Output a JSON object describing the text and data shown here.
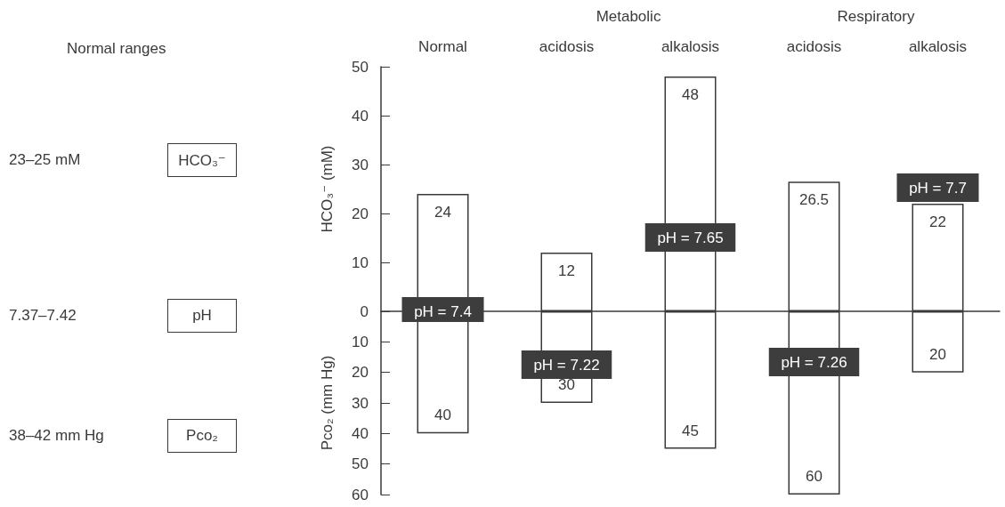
{
  "chart_data": [
    {
      "type": "other",
      "title": "Normal ranges",
      "annotations": [
        "23–25 mM",
        "HCO₃⁻",
        "7.37–7.42",
        "pH",
        "38–42 mm Hg",
        "Pco₂"
      ]
    },
    {
      "type": "bar",
      "categories": [
        "Normal",
        "acidosis",
        "alkalosis",
        "acidosis",
        "alkalosis"
      ],
      "values": [
        24,
        12,
        48,
        26.5,
        22
      ],
      "color": "#ffffff",
      "ylabel": "HCO₃⁻ (mM)",
      "ylim": [
        0,
        50
      ],
      "yticks": [
        0,
        10,
        20,
        30,
        40,
        50
      ],
      "data_labels": true,
      "annotations": [
        "Metabolic",
        "Respiratory",
        "pH = 7.4",
        "pH = 7.65",
        "pH = 7.7"
      ]
    },
    {
      "type": "bar",
      "categories": [
        null,
        null,
        null,
        null,
        null
      ],
      "values": [
        40,
        30,
        45,
        60,
        20
      ],
      "color": "#ffffff",
      "ylabel": "Pco₂ (mm Hg)",
      "ylim": [
        60,
        0
      ],
      "yticks": [
        10,
        20,
        30,
        40,
        50,
        60
      ],
      "data_labels": true,
      "annotations": [
        "pH = 7.22",
        "pH = 7.26"
      ]
    }
  ]
}
